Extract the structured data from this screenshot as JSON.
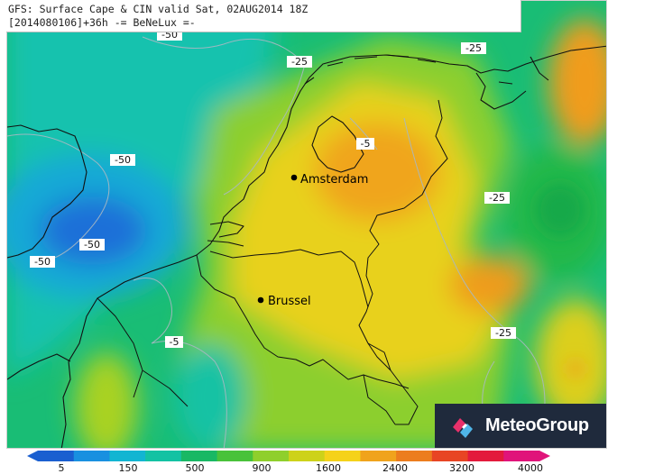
{
  "title": {
    "line1": "GFS: Surface Cape & CIN valid Sat, 02AUG2014 18Z",
    "line2": "[2014080106]+36h -= BeNeLux =-"
  },
  "cities": [
    {
      "name": "Amsterdam"
    },
    {
      "name": "Brussel"
    }
  ],
  "contour_labels": [
    "-50",
    "-25",
    "-25",
    "-5",
    "-50",
    "-50",
    "-50",
    "-25",
    "-25",
    "-5"
  ],
  "brand": {
    "name": "MeteoGroup",
    "icon": "meteogroup-logo-icon"
  },
  "colorbar": {
    "ticks": [
      "5",
      "150",
      "500",
      "900",
      "1600",
      "2400",
      "3200",
      "4000"
    ],
    "colors": [
      "#1a5fd0",
      "#1990e0",
      "#12b5d2",
      "#14c2a3",
      "#19b864",
      "#49c23a",
      "#8fcf2c",
      "#cdd21a",
      "#f5d21a",
      "#f0a31c",
      "#ec7d1e",
      "#e84524",
      "#e31a3c",
      "#e0147a"
    ]
  },
  "legend_colors": {
    "cin_deep": "#2a6fd6",
    "cin_mid": "#19b8cf",
    "green": "#1cbf53",
    "light_green": "#8ccf2e",
    "yellow": "#e5cf1a",
    "orange": "#f0a31c"
  }
}
